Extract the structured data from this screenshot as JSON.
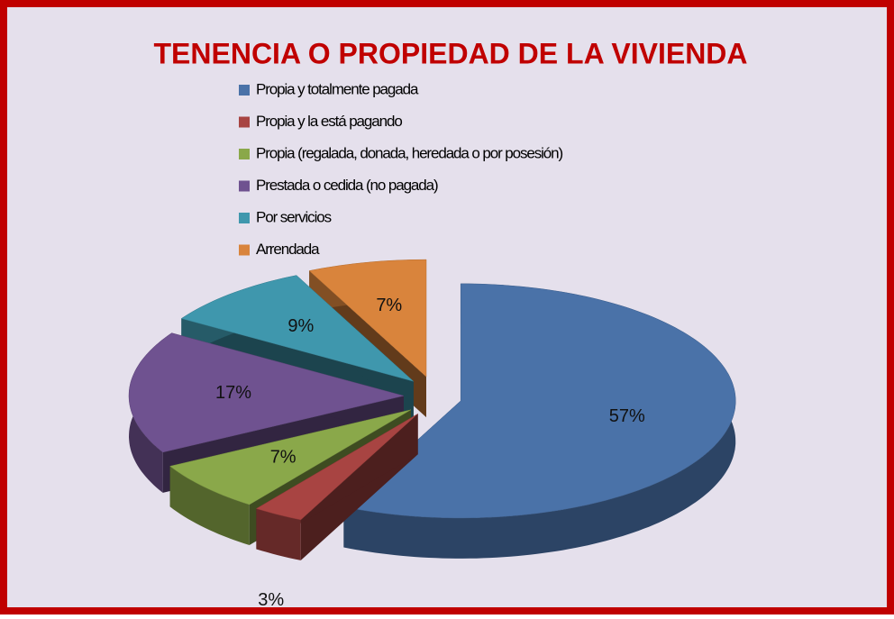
{
  "chart_data": {
    "type": "pie",
    "title": "TENENCIA O PROPIEDAD DE LA VIVIENDA",
    "categories": [
      "Propia y totalmente pagada",
      "Propia y la está pagando",
      "Propia (regalada, donada, heredada o por posesión)",
      "Prestada o cedida (no pagada)",
      "Por servicios",
      "Arrendada"
    ],
    "values": [
      57,
      3,
      7,
      17,
      9,
      7
    ],
    "value_labels": [
      "57%",
      "3%",
      "7%",
      "17%",
      "9%",
      "7%"
    ],
    "colors": [
      "#4a72a8",
      "#a84442",
      "#8aa84a",
      "#6f5290",
      "#3f97ad",
      "#d9843c"
    ],
    "legend": "top"
  }
}
